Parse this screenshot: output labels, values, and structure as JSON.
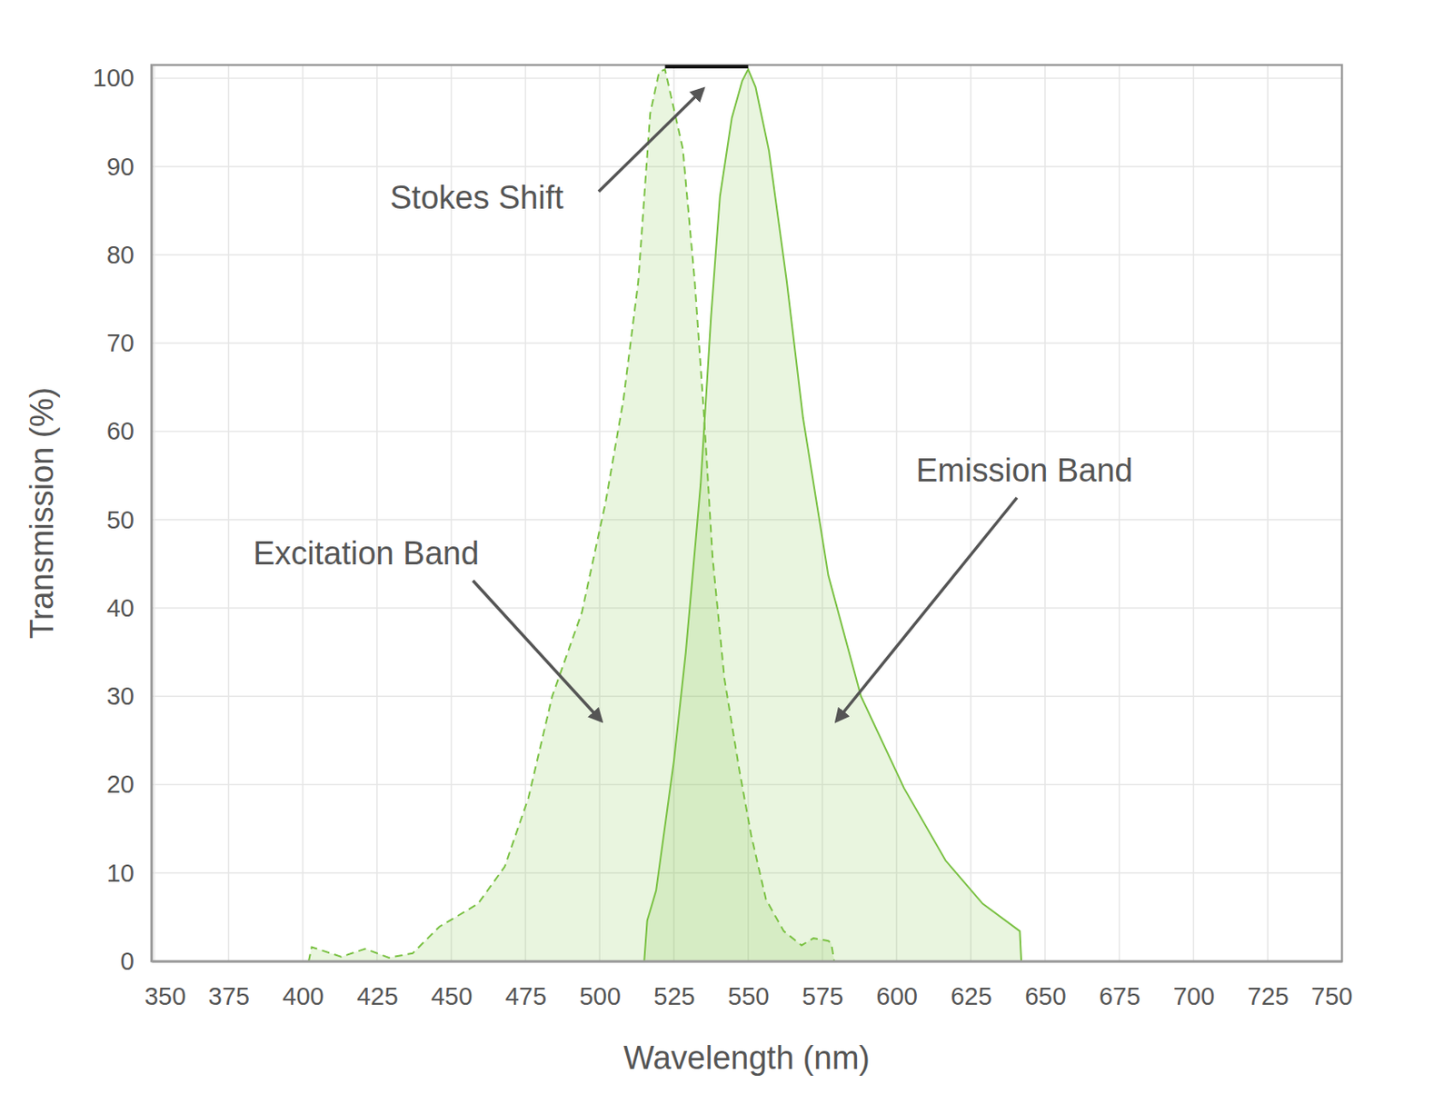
{
  "chart_data": {
    "type": "area",
    "x_label": "Wavelength (nm)",
    "y_label": "Transmission (%)",
    "xlim": [
      349,
      750
    ],
    "xticks": [
      350,
      375,
      400,
      425,
      450,
      475,
      500,
      525,
      550,
      575,
      600,
      625,
      650,
      675,
      700,
      725,
      750
    ],
    "ylim": [
      0,
      101.5
    ],
    "yticks": [
      0,
      10,
      20,
      30,
      40,
      50,
      60,
      70,
      80,
      90,
      100
    ],
    "grid": true,
    "series": [
      {
        "name": "Excitation Band",
        "color": "#7ac143",
        "line_style": "dashed",
        "x": [
          350,
          402,
          403,
          413,
          421,
          429,
          437,
          446,
          459,
          468,
          476,
          484,
          494,
          502,
          508,
          513,
          517,
          520,
          522,
          524,
          528,
          532,
          535,
          538,
          542,
          547,
          551,
          556,
          562,
          568,
          572,
          577,
          578,
          579,
          750
        ],
        "values": [
          0,
          0,
          1.6,
          0.5,
          1.4,
          0.4,
          0.9,
          3.9,
          6.5,
          10.7,
          18.5,
          30,
          39.5,
          52,
          63.6,
          77,
          96,
          100.7,
          101,
          98,
          92,
          77,
          62.5,
          45.8,
          32,
          21.7,
          14.3,
          7,
          3.4,
          1.8,
          2.6,
          2.3,
          2,
          0,
          0
        ]
      },
      {
        "name": "Emission Band",
        "color": "#7ac143",
        "line_style": "solid",
        "x": [
          350,
          515,
          516,
          519,
          525,
          529,
          534,
          537.5,
          540.5,
          544.5,
          548,
          550,
          552.5,
          557,
          563,
          568.5,
          577,
          588,
          602.5,
          616.5,
          629,
          641.5,
          642,
          750
        ],
        "values": [
          0,
          0,
          4.6,
          8,
          22.7,
          35,
          54,
          73,
          86.6,
          95.5,
          99.7,
          101,
          99,
          91.8,
          77,
          61.5,
          43.7,
          30,
          19.6,
          11.4,
          6.5,
          3.4,
          0,
          0
        ]
      }
    ],
    "annotations": [
      {
        "text": "Stokes Shift",
        "x": [
          522,
          550
        ]
      }
    ]
  }
}
